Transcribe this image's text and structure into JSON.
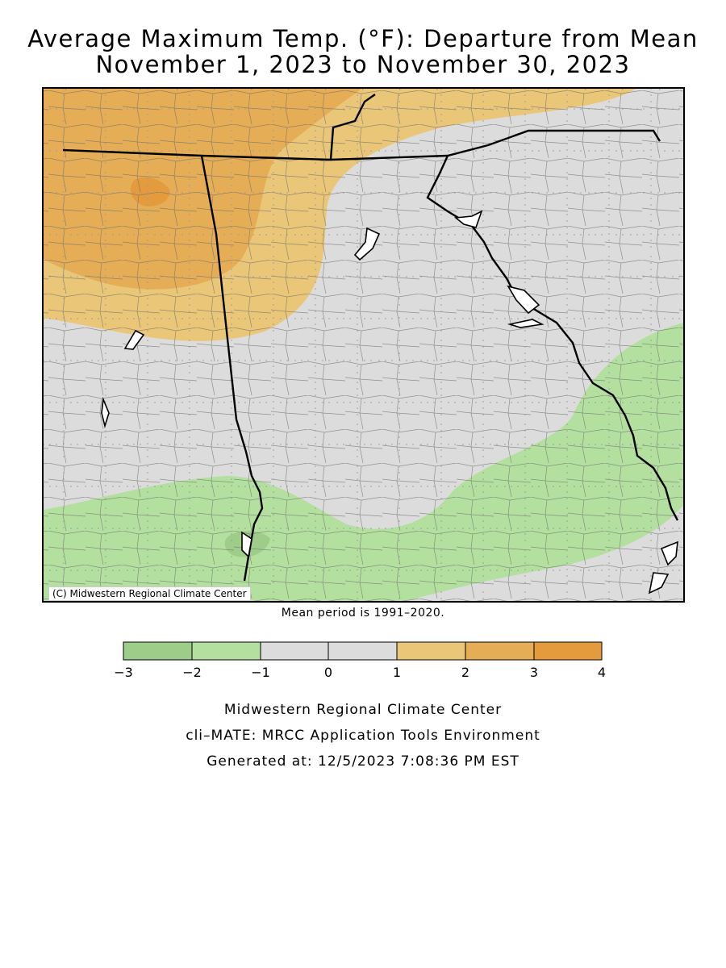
{
  "title": {
    "line1": "Average Maximum Temp. (°F): Departure from Mean",
    "line2": "November 1, 2023 to November 30, 2023"
  },
  "map": {
    "credit": "(C) Midwestern Regional Climate Center",
    "mean_period": "Mean period is 1991–2020.",
    "colors": {
      "neg3_neg2": "#9ecd8a",
      "neg2_neg1": "#b3e09f",
      "neg1_1": "#dcdcdc",
      "1_2": "#e9c678",
      "2_3": "#e5ad55",
      "3_4": "#e49b3d"
    }
  },
  "legend": {
    "ticks": [
      "−3",
      "−2",
      "−1",
      "0",
      "1",
      "2",
      "3",
      "4"
    ],
    "bins": [
      {
        "from": -3,
        "to": -2,
        "color": "#9ecd8a"
      },
      {
        "from": -2,
        "to": -1,
        "color": "#b3e09f"
      },
      {
        "from": -1,
        "to": 0,
        "color": "#dcdcdc"
      },
      {
        "from": 0,
        "to": 1,
        "color": "#dcdcdc"
      },
      {
        "from": 1,
        "to": 2,
        "color": "#e9c678"
      },
      {
        "from": 2,
        "to": 3,
        "color": "#e5ad55"
      },
      {
        "from": 3,
        "to": 4,
        "color": "#e49b3d"
      }
    ]
  },
  "footer": {
    "line1": "Midwestern Regional Climate Center",
    "line2": "cli–MATE: MRCC Application Tools Environment",
    "line3": "Generated at: 12/5/2023 7:08:36 PM EST"
  }
}
